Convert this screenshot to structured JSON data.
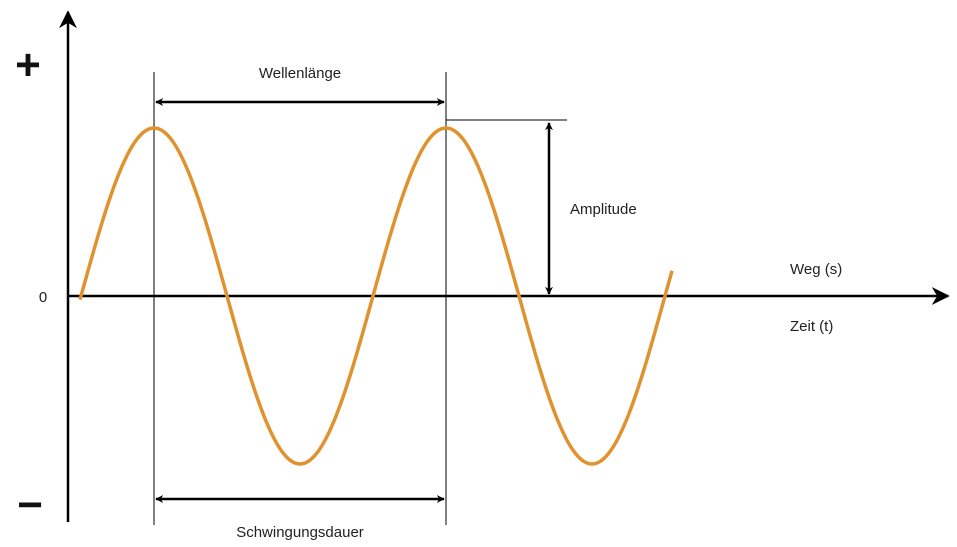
{
  "labels": {
    "plus": "+",
    "minus": "−",
    "zero": "0",
    "wavelength": "Wellenlänge",
    "amplitude": "Amplitude",
    "distance": "Weg (s)",
    "time": "Zeit (t)",
    "period": "Schwingungsdauer"
  }
}
